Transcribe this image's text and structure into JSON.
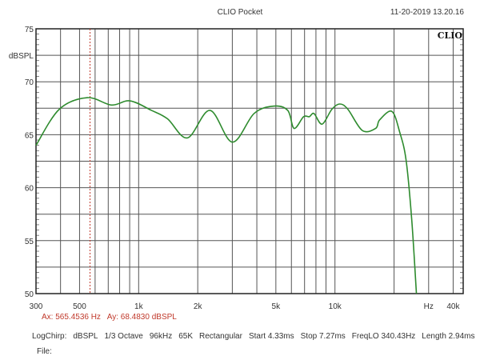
{
  "header": {
    "title": "CLIO Pocket",
    "timestamp": "11-20-2019 13.20.16",
    "logo_text": "CLIO"
  },
  "cursor": {
    "ax": "Ax: 565.4536 Hz",
    "ay": "Ay: 68.4830 dBSPL",
    "color": "#c0392b"
  },
  "footer": {
    "settings": [
      "LogChirp:",
      "dBSPL",
      "1/3 Octave",
      "96kHz",
      "65K",
      "Rectangular",
      "Start 4.33ms",
      "Stop 7.27ms",
      "FreqLO 340.43Hz",
      "Length 2.94ms"
    ],
    "file_label": "File:"
  },
  "chart_data": {
    "type": "line",
    "title": "",
    "xlabel": "Hz",
    "ylabel": "dBSPL",
    "x_scale": "log",
    "xlim": [
      300,
      45000
    ],
    "ylim": [
      50,
      75
    ],
    "grid": true,
    "x_gridlines": [
      400,
      500,
      600,
      700,
      800,
      900,
      1000,
      2000,
      3000,
      4000,
      5000,
      6000,
      7000,
      8000,
      9000,
      10000,
      20000,
      30000,
      40000
    ],
    "y_gridlines": [
      52.5,
      55,
      57.5,
      60,
      62.5,
      65,
      67.5,
      70,
      72.5
    ],
    "x_tick_labels": [
      {
        "value": 300,
        "label": "300"
      },
      {
        "value": 500,
        "label": "500"
      },
      {
        "value": 1000,
        "label": "1k"
      },
      {
        "value": 2000,
        "label": "2k"
      },
      {
        "value": 5000,
        "label": "5k"
      },
      {
        "value": 10000,
        "label": "10k"
      },
      {
        "value": 30000,
        "label": "Hz"
      },
      {
        "value": 40000,
        "label": "40k"
      }
    ],
    "y_tick_labels": [
      {
        "value": 75,
        "label": "75"
      },
      {
        "value": 72.5,
        "label": "dBSPL"
      },
      {
        "value": 70,
        "label": "70"
      },
      {
        "value": 65,
        "label": "65"
      },
      {
        "value": 60,
        "label": "60"
      },
      {
        "value": 55,
        "label": "55"
      },
      {
        "value": 50,
        "label": "50"
      }
    ],
    "cursor_x": 565.4536,
    "series": [
      {
        "color": "#2e8b2e",
        "x": [
          300,
          394,
          548,
          727,
          902,
          1162,
          1403,
          1773,
          2307,
          3000,
          3870,
          4854,
          5745,
          6189,
          6920,
          7400,
          7820,
          8594,
          9640,
          10580,
          11640,
          13780,
          16120,
          16890,
          19500,
          21400,
          23030,
          24600,
          26000
        ],
        "y": [
          64.0,
          67.4,
          68.5,
          67.8,
          68.2,
          67.3,
          66.5,
          64.7,
          67.3,
          64.3,
          67.0,
          67.7,
          67.3,
          65.6,
          66.7,
          66.7,
          67.0,
          66.0,
          67.4,
          67.9,
          67.4,
          65.4,
          65.6,
          66.4,
          67.2,
          65.2,
          62.6,
          57.0,
          50.0
        ]
      }
    ]
  }
}
